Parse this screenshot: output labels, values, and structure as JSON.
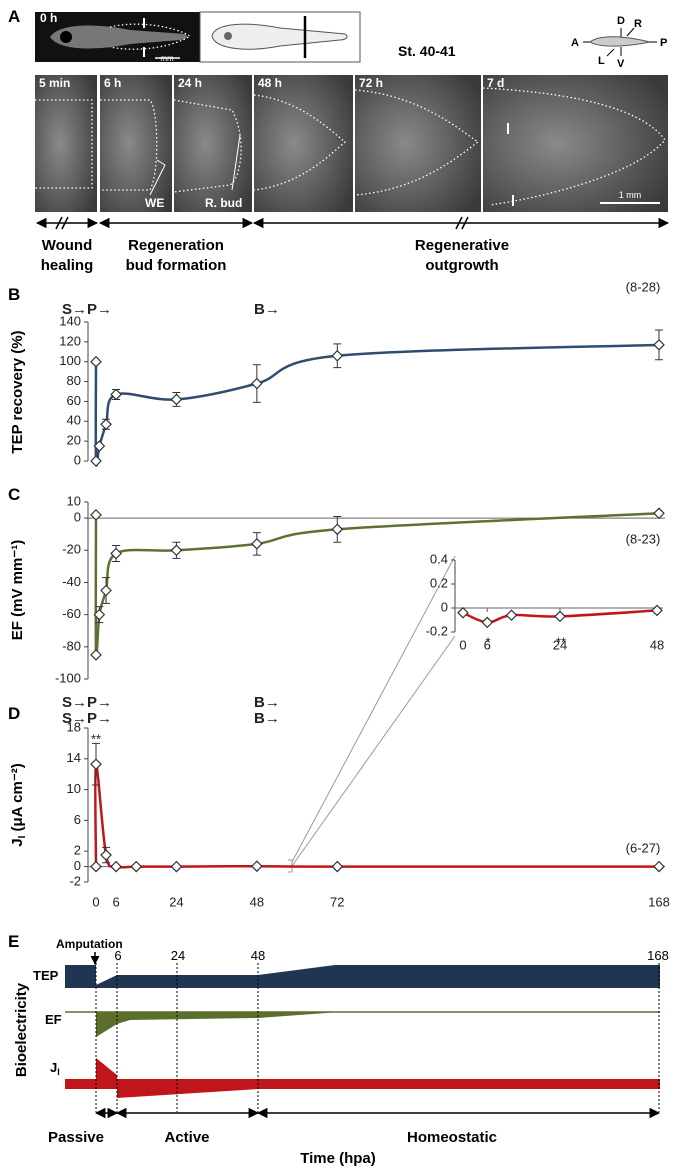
{
  "panel_a": {
    "label": "A",
    "images": [
      "0 h",
      "5 min",
      "6 h",
      "24 h",
      "48 h",
      "72 h",
      "7 d"
    ],
    "scale_labels": [
      "mm",
      "1 mm"
    ],
    "stage": "St. 40-41",
    "axes": [
      "D",
      "R",
      "A",
      "P",
      "L",
      "V"
    ],
    "callouts": [
      "WE",
      "R. bud"
    ],
    "phases": [
      [
        "Wound",
        "healing"
      ],
      [
        "Regeneration",
        "bud formation"
      ],
      [
        "Regenerative",
        "outgrowth"
      ]
    ]
  },
  "chart_data": [
    {
      "type": "line",
      "panel": "B",
      "ylabel": "TEP recovery (%)",
      "xlim": [
        0,
        168
      ],
      "ylim": [
        0,
        140
      ],
      "yticks": [
        0,
        20,
        40,
        60,
        80,
        100,
        120,
        140
      ],
      "x": [
        0,
        0,
        1,
        3,
        6,
        24,
        48,
        72,
        168
      ],
      "values": [
        100,
        0,
        15,
        37,
        67,
        62,
        78,
        106,
        117
      ],
      "errors": [
        null,
        null,
        null,
        5,
        5,
        7,
        19,
        12,
        15
      ],
      "color": "#2e4d70",
      "annotations": [
        "S→P→",
        "B→",
        "(8-28)"
      ]
    },
    {
      "type": "line",
      "panel": "C",
      "ylabel": "EF (mV mm⁻¹)",
      "xlim": [
        0,
        168
      ],
      "ylim": [
        -100,
        10
      ],
      "yticks": [
        10,
        0,
        -20,
        -40,
        -60,
        -80,
        -100
      ],
      "x": [
        0,
        0,
        1,
        3,
        6,
        24,
        48,
        72,
        168
      ],
      "values": [
        2,
        -85,
        -60,
        -45,
        -22,
        -20,
        -16,
        -7,
        3
      ],
      "errors": [
        null,
        null,
        5,
        8,
        5,
        5,
        7,
        8,
        null
      ],
      "color": "#5b7232",
      "annotations": [
        "S→P→",
        "B→",
        "(8-23)"
      ]
    },
    {
      "type": "line",
      "panel": "D",
      "ylabel": [
        "J",
        "I",
        " (μA cm⁻²)"
      ],
      "xlim": [
        0,
        168
      ],
      "ylim": [
        -2,
        18
      ],
      "yticks": [
        18,
        14,
        10,
        6,
        2,
        0,
        -2
      ],
      "xticks": [
        0,
        6,
        24,
        48,
        72,
        168
      ],
      "x": [
        0,
        0,
        3,
        6,
        12,
        24,
        48,
        72,
        168
      ],
      "values": [
        0,
        13.3,
        1.5,
        0,
        0,
        0,
        0.05,
        0,
        0
      ],
      "errors": [
        null,
        2.7,
        1,
        null,
        null,
        null,
        null,
        null,
        null
      ],
      "color": "#c0161b",
      "annotations": [
        "S→P→",
        "B→",
        "**",
        "(6-27)"
      ]
    },
    {
      "type": "line",
      "xlim": [
        0,
        48
      ],
      "ylim": [
        -0.2,
        0.4
      ],
      "yticks": [
        0.4,
        0.2,
        0,
        -0.2
      ],
      "xticks": [
        0,
        6,
        24,
        48
      ],
      "x": [
        0,
        6,
        12,
        24,
        48
      ],
      "values": [
        -0.04,
        -0.12,
        -0.06,
        -0.07,
        -0.02
      ],
      "color": "#c0161b",
      "annotations": [
        "*",
        "**"
      ]
    }
  ],
  "panel_e": {
    "label": "E",
    "ylabel": "Bioelectricity",
    "event": "Amputation",
    "ticks": [
      "6",
      "24",
      "48",
      "168"
    ],
    "rows": [
      "TEP",
      "EF"
    ],
    "row_ji": [
      "J",
      "I"
    ],
    "phases": [
      "Passive",
      "Active",
      "Homeostatic"
    ],
    "xlabel": "Time (hpa)"
  }
}
